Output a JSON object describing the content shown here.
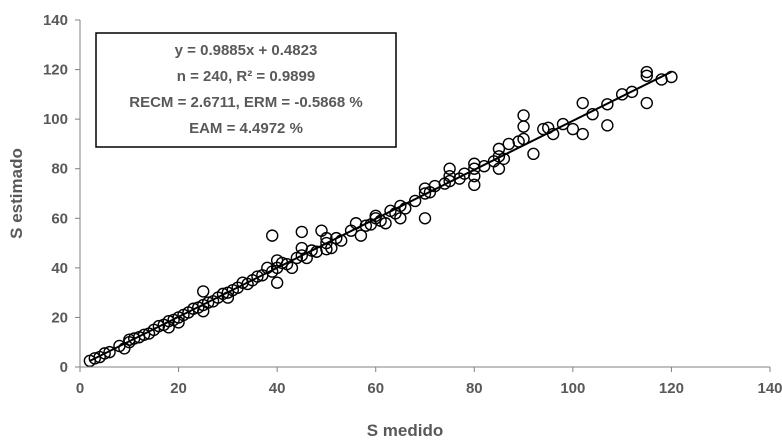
{
  "colors": {
    "axis": "#808080",
    "text": "#595959",
    "marker": "#000000",
    "trendline": "#000000",
    "box_border": "#000000"
  },
  "chart_data": {
    "type": "scatter",
    "xlabel": "S medido",
    "ylabel": "S estimado",
    "xlim": [
      0,
      140
    ],
    "ylim": [
      0,
      140
    ],
    "xticks": [
      0,
      20,
      40,
      60,
      80,
      100,
      120,
      140
    ],
    "yticks": [
      0,
      20,
      40,
      60,
      80,
      100,
      120,
      140
    ],
    "grid": false,
    "legend": "none",
    "marker": "open-circle",
    "annotation": {
      "position": "top-left",
      "lines": [
        "y = 0.9885x + 0.4823",
        "n = 240, R² = 0.9899",
        "RECM = 2.6711, ERM = -0.5868 %",
        "EAM = 4.4972 %"
      ]
    },
    "trendline": {
      "slope": 0.9885,
      "intercept": 0.4823,
      "x_range": [
        2,
        120
      ]
    },
    "points": [
      [
        2,
        2.5
      ],
      [
        3,
        3.5
      ],
      [
        4,
        4
      ],
      [
        5,
        5.5
      ],
      [
        6,
        6
      ],
      [
        8,
        8.5
      ],
      [
        9,
        7.5
      ],
      [
        10,
        10
      ],
      [
        10,
        11
      ],
      [
        11,
        11.5
      ],
      [
        12,
        12
      ],
      [
        13,
        13
      ],
      [
        14,
        13.5
      ],
      [
        15,
        15
      ],
      [
        16,
        16.5
      ],
      [
        17,
        17
      ],
      [
        18,
        16
      ],
      [
        18,
        18.5
      ],
      [
        19,
        19
      ],
      [
        20,
        20
      ],
      [
        20,
        18
      ],
      [
        21,
        21
      ],
      [
        22,
        22
      ],
      [
        23,
        23.5
      ],
      [
        24,
        24
      ],
      [
        25,
        25
      ],
      [
        25,
        22.5
      ],
      [
        25,
        30.5
      ],
      [
        26,
        26
      ],
      [
        27,
        26.5
      ],
      [
        28,
        28
      ],
      [
        29,
        29.5
      ],
      [
        30,
        30
      ],
      [
        30,
        28
      ],
      [
        31,
        31
      ],
      [
        32,
        32
      ],
      [
        33,
        34
      ],
      [
        34,
        33.5
      ],
      [
        35,
        35
      ],
      [
        36,
        36.5
      ],
      [
        37,
        37
      ],
      [
        38,
        40
      ],
      [
        39,
        38.5
      ],
      [
        39,
        53
      ],
      [
        40,
        40
      ],
      [
        40,
        34
      ],
      [
        40,
        43
      ],
      [
        41,
        42
      ],
      [
        42,
        41.5
      ],
      [
        43,
        40
      ],
      [
        44,
        44
      ],
      [
        45,
        45
      ],
      [
        45,
        48
      ],
      [
        45,
        54.5
      ],
      [
        46,
        44
      ],
      [
        47,
        47
      ],
      [
        48,
        46.5
      ],
      [
        49,
        55
      ],
      [
        50,
        50
      ],
      [
        50,
        52
      ],
      [
        50,
        47.5
      ],
      [
        51,
        48
      ],
      [
        52,
        52
      ],
      [
        53,
        51
      ],
      [
        55,
        55
      ],
      [
        56,
        58
      ],
      [
        57,
        53
      ],
      [
        58,
        57
      ],
      [
        59,
        57.5
      ],
      [
        60,
        60
      ],
      [
        60,
        61
      ],
      [
        61,
        59
      ],
      [
        62,
        58
      ],
      [
        63,
        63
      ],
      [
        64,
        62
      ],
      [
        65,
        65
      ],
      [
        65,
        60
      ],
      [
        66,
        64
      ],
      [
        68,
        67
      ],
      [
        70,
        70
      ],
      [
        70,
        60
      ],
      [
        70,
        72
      ],
      [
        71,
        70.5
      ],
      [
        72,
        73
      ],
      [
        74,
        74
      ],
      [
        75,
        75
      ],
      [
        75,
        80
      ],
      [
        75,
        77
      ],
      [
        77,
        76
      ],
      [
        78,
        78
      ],
      [
        80,
        80
      ],
      [
        80,
        82
      ],
      [
        80,
        73.5
      ],
      [
        80,
        77
      ],
      [
        82,
        81
      ],
      [
        84,
        83
      ],
      [
        85,
        85
      ],
      [
        85,
        80
      ],
      [
        85,
        88
      ],
      [
        86,
        84
      ],
      [
        87,
        90
      ],
      [
        89,
        91
      ],
      [
        90,
        92
      ],
      [
        90,
        97
      ],
      [
        90,
        101.5
      ],
      [
        92,
        86
      ],
      [
        94,
        96
      ],
      [
        95,
        96.5
      ],
      [
        96,
        94
      ],
      [
        98,
        98
      ],
      [
        100,
        96
      ],
      [
        102,
        94
      ],
      [
        102,
        106.5
      ],
      [
        104,
        102
      ],
      [
        107,
        106
      ],
      [
        107,
        97.5
      ],
      [
        110,
        110
      ],
      [
        112,
        111
      ],
      [
        115,
        117.5
      ],
      [
        115,
        119
      ],
      [
        115,
        106.5
      ],
      [
        118,
        116
      ],
      [
        120,
        117
      ]
    ]
  }
}
